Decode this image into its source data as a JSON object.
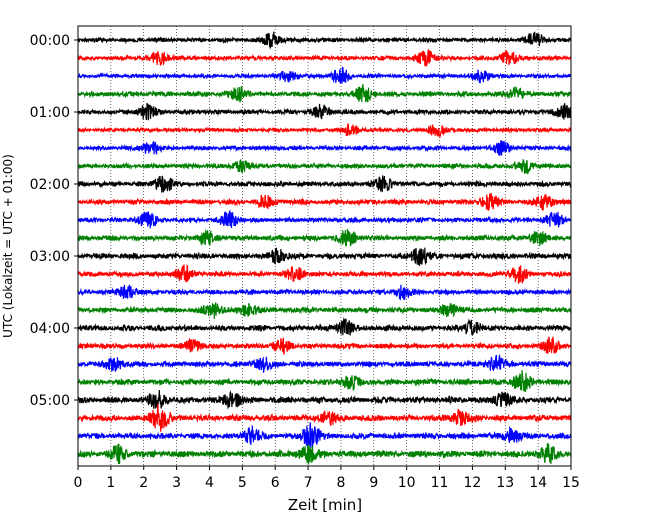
{
  "chart_data": {
    "type": "line",
    "title": "",
    "xlabel": "Zeit  [min]",
    "ylabel": "UTC (Lokalzeit = UTC + 01:00)",
    "xlim": [
      0,
      15
    ],
    "x_ticks": [
      "0",
      "1",
      "2",
      "3",
      "4",
      "5",
      "6",
      "7",
      "8",
      "9",
      "10",
      "11",
      "12",
      "13",
      "14",
      "15"
    ],
    "y_tick_labels": [
      "00:00",
      "01:00",
      "02:00",
      "03:00",
      "04:00",
      "05:00"
    ],
    "grid": "vertical dotted lines at each minute",
    "trace_colors": [
      "#000000",
      "#ff0000",
      "#0000ff",
      "#008000"
    ],
    "series": [
      {
        "start": "00:00",
        "amplitude": 0.35,
        "events": [
          {
            "x": 5.9,
            "amp": 1.2
          },
          {
            "x": 13.9,
            "amp": 1.1
          }
        ]
      },
      {
        "start": "00:15",
        "amplitude": 0.35,
        "events": [
          {
            "x": 2.5,
            "amp": 1.0
          },
          {
            "x": 10.6,
            "amp": 1.2
          },
          {
            "x": 13.1,
            "amp": 1.0
          }
        ]
      },
      {
        "start": "00:30",
        "amplitude": 0.32,
        "events": [
          {
            "x": 6.4,
            "amp": 1.0
          },
          {
            "x": 8.0,
            "amp": 1.3
          },
          {
            "x": 12.3,
            "amp": 1.0
          }
        ]
      },
      {
        "start": "00:45",
        "amplitude": 0.4,
        "events": [
          {
            "x": 4.9,
            "amp": 1.1
          },
          {
            "x": 8.7,
            "amp": 1.4
          },
          {
            "x": 13.3,
            "amp": 1.0
          }
        ]
      },
      {
        "start": "01:00",
        "amplitude": 0.38,
        "events": [
          {
            "x": 2.1,
            "amp": 1.2
          },
          {
            "x": 7.4,
            "amp": 1.1
          },
          {
            "x": 14.8,
            "amp": 1.2
          }
        ]
      },
      {
        "start": "01:15",
        "amplitude": 0.3,
        "events": [
          {
            "x": 8.3,
            "amp": 0.9
          },
          {
            "x": 10.9,
            "amp": 1.0
          }
        ]
      },
      {
        "start": "01:30",
        "amplitude": 0.33,
        "events": [
          {
            "x": 2.2,
            "amp": 1.1
          },
          {
            "x": 12.9,
            "amp": 1.1
          }
        ]
      },
      {
        "start": "01:45",
        "amplitude": 0.38,
        "events": [
          {
            "x": 5.0,
            "amp": 1.0
          },
          {
            "x": 13.6,
            "amp": 1.0
          }
        ]
      },
      {
        "start": "02:00",
        "amplitude": 0.4,
        "events": [
          {
            "x": 2.6,
            "amp": 1.4
          },
          {
            "x": 9.3,
            "amp": 1.1
          }
        ]
      },
      {
        "start": "02:15",
        "amplitude": 0.42,
        "events": [
          {
            "x": 5.7,
            "amp": 1.0
          },
          {
            "x": 12.5,
            "amp": 1.3
          },
          {
            "x": 14.2,
            "amp": 1.1
          }
        ]
      },
      {
        "start": "02:30",
        "amplitude": 0.38,
        "events": [
          {
            "x": 2.1,
            "amp": 1.2
          },
          {
            "x": 4.6,
            "amp": 1.3
          },
          {
            "x": 14.5,
            "amp": 1.2
          }
        ]
      },
      {
        "start": "02:45",
        "amplitude": 0.42,
        "events": [
          {
            "x": 3.9,
            "amp": 1.1
          },
          {
            "x": 8.2,
            "amp": 1.3
          },
          {
            "x": 14.0,
            "amp": 1.0
          }
        ]
      },
      {
        "start": "03:00",
        "amplitude": 0.45,
        "events": [
          {
            "x": 6.1,
            "amp": 1.1
          },
          {
            "x": 10.4,
            "amp": 1.5
          }
        ]
      },
      {
        "start": "03:15",
        "amplitude": 0.4,
        "events": [
          {
            "x": 3.2,
            "amp": 1.3
          },
          {
            "x": 6.6,
            "amp": 1.1
          },
          {
            "x": 13.4,
            "amp": 1.3
          }
        ]
      },
      {
        "start": "03:30",
        "amplitude": 0.38,
        "events": [
          {
            "x": 1.5,
            "amp": 1.1
          },
          {
            "x": 9.9,
            "amp": 1.1
          }
        ]
      },
      {
        "start": "03:45",
        "amplitude": 0.42,
        "events": [
          {
            "x": 4.1,
            "amp": 1.3
          },
          {
            "x": 5.2,
            "amp": 1.1
          },
          {
            "x": 11.3,
            "amp": 1.0
          }
        ]
      },
      {
        "start": "04:00",
        "amplitude": 0.45,
        "events": [
          {
            "x": 8.1,
            "amp": 1.2
          },
          {
            "x": 12.0,
            "amp": 1.1
          }
        ]
      },
      {
        "start": "04:15",
        "amplitude": 0.42,
        "events": [
          {
            "x": 3.5,
            "amp": 1.0
          },
          {
            "x": 6.2,
            "amp": 1.0
          },
          {
            "x": 14.4,
            "amp": 1.2
          }
        ]
      },
      {
        "start": "04:30",
        "amplitude": 0.45,
        "events": [
          {
            "x": 1.1,
            "amp": 1.1
          },
          {
            "x": 5.6,
            "amp": 1.1
          },
          {
            "x": 12.7,
            "amp": 1.2
          }
        ]
      },
      {
        "start": "04:45",
        "amplitude": 0.48,
        "events": [
          {
            "x": 8.3,
            "amp": 1.1
          },
          {
            "x": 13.5,
            "amp": 1.6
          }
        ]
      },
      {
        "start": "05:00",
        "amplitude": 0.5,
        "events": [
          {
            "x": 2.4,
            "amp": 1.4
          },
          {
            "x": 4.7,
            "amp": 1.2
          },
          {
            "x": 12.9,
            "amp": 1.1
          }
        ]
      },
      {
        "start": "05:15",
        "amplitude": 0.5,
        "events": [
          {
            "x": 2.5,
            "amp": 2.2
          },
          {
            "x": 7.6,
            "amp": 1.0
          },
          {
            "x": 11.6,
            "amp": 1.1
          }
        ]
      },
      {
        "start": "05:30",
        "amplitude": 0.48,
        "events": [
          {
            "x": 5.3,
            "amp": 1.4
          },
          {
            "x": 7.1,
            "amp": 2.0
          },
          {
            "x": 13.2,
            "amp": 1.2
          }
        ]
      },
      {
        "start": "05:45",
        "amplitude": 0.55,
        "events": [
          {
            "x": 1.2,
            "amp": 1.2
          },
          {
            "x": 7.0,
            "amp": 1.4
          },
          {
            "x": 14.3,
            "amp": 1.3
          }
        ]
      }
    ]
  }
}
